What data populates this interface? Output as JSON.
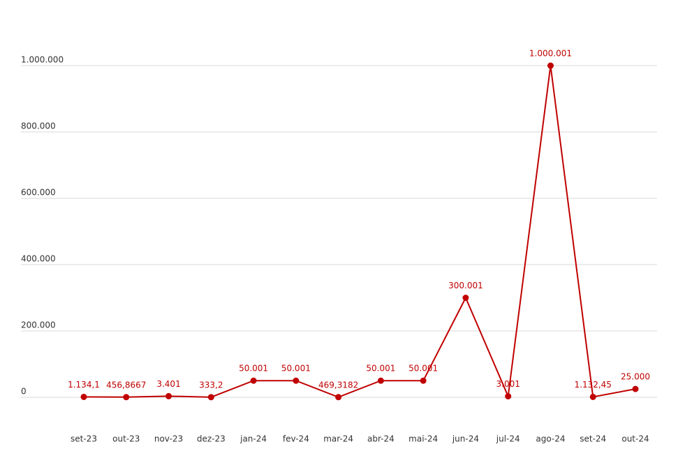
{
  "chart_data": {
    "type": "line",
    "categories": [
      "set-23",
      "out-23",
      "nov-23",
      "dez-23",
      "jan-24",
      "fev-24",
      "mar-24",
      "abr-24",
      "mai-24",
      "jun-24",
      "jul-24",
      "ago-24",
      "set-24",
      "out-24"
    ],
    "values": [
      1134.1,
      456.8667,
      3401,
      333.2,
      50001,
      50001,
      469.3182,
      50001,
      50001,
      300001,
      3001,
      1000001,
      1132.45,
      25000
    ],
    "value_labels": [
      "1.134,1",
      "456,8667",
      "3.401",
      "333,2",
      "50.001",
      "50.001",
      "469,3182",
      "50.001",
      "50.001",
      "300.001",
      "3.001",
      "1.000.001",
      "1.132,45",
      "25.000"
    ],
    "color": "#c00000",
    "ylim": [
      0,
      1000000
    ],
    "yticks": [
      0,
      {
        "value": 200000,
        "label": "200.000"
      },
      {
        "value": 400000,
        "label": "400.000"
      },
      {
        "value": 600000,
        "label": "600.000"
      },
      {
        "value": 800000,
        "label": "800.000"
      },
      {
        "value": 1000000,
        "label": "1.000.000"
      }
    ],
    "grid": true
  }
}
